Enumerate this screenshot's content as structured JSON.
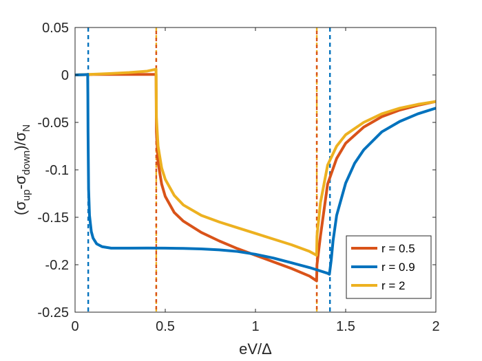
{
  "chart_data": {
    "type": "line",
    "xlabel": "eV/Δ",
    "ylabel": {
      "open": "(",
      "sigma": "σ",
      "sub_up": "up",
      "minus": "-",
      "sub_down": "down",
      "close_over": ")/",
      "sub_N": "N"
    },
    "xlim": [
      0,
      2
    ],
    "ylim": [
      -0.25,
      0.05
    ],
    "xticks": [
      0,
      0.5,
      1,
      1.5,
      2
    ],
    "xtick_labels": [
      "0",
      "0.5",
      "1",
      "1.5",
      "2"
    ],
    "yticks": [
      0.05,
      0,
      -0.05,
      -0.1,
      -0.15,
      -0.2,
      -0.25
    ],
    "ytick_labels": [
      "0.05",
      "0",
      "-0.05",
      "-0.1",
      "-0.15",
      "-0.2",
      "-0.25"
    ],
    "legend_position": "bottom-right",
    "series": [
      {
        "name": "r = 0.5",
        "color": "#D95319",
        "x": [
          0,
          0.1,
          0.2,
          0.3,
          0.4,
          0.449,
          0.451,
          0.46,
          0.48,
          0.5,
          0.55,
          0.6,
          0.7,
          0.8,
          0.9,
          1.0,
          1.1,
          1.2,
          1.3,
          1.339,
          1.341,
          1.36,
          1.4,
          1.45,
          1.5,
          1.6,
          1.7,
          1.8,
          1.9,
          2.0
        ],
        "y": [
          0,
          0.0005,
          0.0005,
          0.0005,
          0.0005,
          0.0005,
          -0.06,
          -0.092,
          -0.115,
          -0.128,
          -0.145,
          -0.154,
          -0.166,
          -0.175,
          -0.183,
          -0.19,
          -0.197,
          -0.204,
          -0.212,
          -0.217,
          -0.2,
          -0.17,
          -0.115,
          -0.088,
          -0.072,
          -0.055,
          -0.044,
          -0.037,
          -0.032,
          -0.028
        ]
      },
      {
        "name": "r = 0.9",
        "color": "#0072BD",
        "x": [
          0,
          0.05,
          0.07,
          0.071,
          0.072,
          0.075,
          0.08,
          0.09,
          0.1,
          0.12,
          0.15,
          0.2,
          0.3,
          0.4,
          0.5,
          0.6,
          0.7,
          0.8,
          0.9,
          1.0,
          1.1,
          1.2,
          1.3,
          1.35,
          1.4,
          1.41,
          1.42,
          1.43,
          1.45,
          1.5,
          1.55,
          1.6,
          1.7,
          1.8,
          1.9,
          2.0
        ],
        "y": [
          0,
          0.0003,
          0.0005,
          -0.02,
          -0.06,
          -0.12,
          -0.148,
          -0.165,
          -0.172,
          -0.178,
          -0.181,
          -0.1825,
          -0.1825,
          -0.1824,
          -0.1825,
          -0.1828,
          -0.1833,
          -0.1843,
          -0.186,
          -0.189,
          -0.193,
          -0.198,
          -0.203,
          -0.206,
          -0.209,
          -0.21,
          -0.195,
          -0.175,
          -0.148,
          -0.114,
          -0.093,
          -0.079,
          -0.06,
          -0.049,
          -0.041,
          -0.035
        ]
      },
      {
        "name": "r = 2",
        "color": "#EDB120",
        "x": [
          0,
          0.1,
          0.2,
          0.3,
          0.4,
          0.449,
          0.451,
          0.46,
          0.48,
          0.5,
          0.55,
          0.6,
          0.7,
          0.8,
          0.9,
          1.0,
          1.1,
          1.2,
          1.3,
          1.339,
          1.341,
          1.36,
          1.4,
          1.45,
          1.5,
          1.6,
          1.7,
          1.8,
          1.9,
          2.0
        ],
        "y": [
          0,
          0.0007,
          0.0015,
          0.0025,
          0.004,
          0.006,
          -0.045,
          -0.075,
          -0.098,
          -0.11,
          -0.127,
          -0.137,
          -0.148,
          -0.155,
          -0.161,
          -0.167,
          -0.173,
          -0.179,
          -0.186,
          -0.19,
          -0.17,
          -0.135,
          -0.095,
          -0.075,
          -0.063,
          -0.05,
          -0.041,
          -0.035,
          -0.031,
          -0.028
        ]
      }
    ],
    "vertical_markers": [
      {
        "x": 0.073,
        "color": "#0072BD"
      },
      {
        "x": 0.45,
        "color": "#EDB120"
      },
      {
        "x": 0.45,
        "color": "#D95319"
      },
      {
        "x": 1.34,
        "color": "#EDB120"
      },
      {
        "x": 1.34,
        "color": "#D95319"
      },
      {
        "x": 1.413,
        "color": "#0072BD"
      }
    ]
  }
}
